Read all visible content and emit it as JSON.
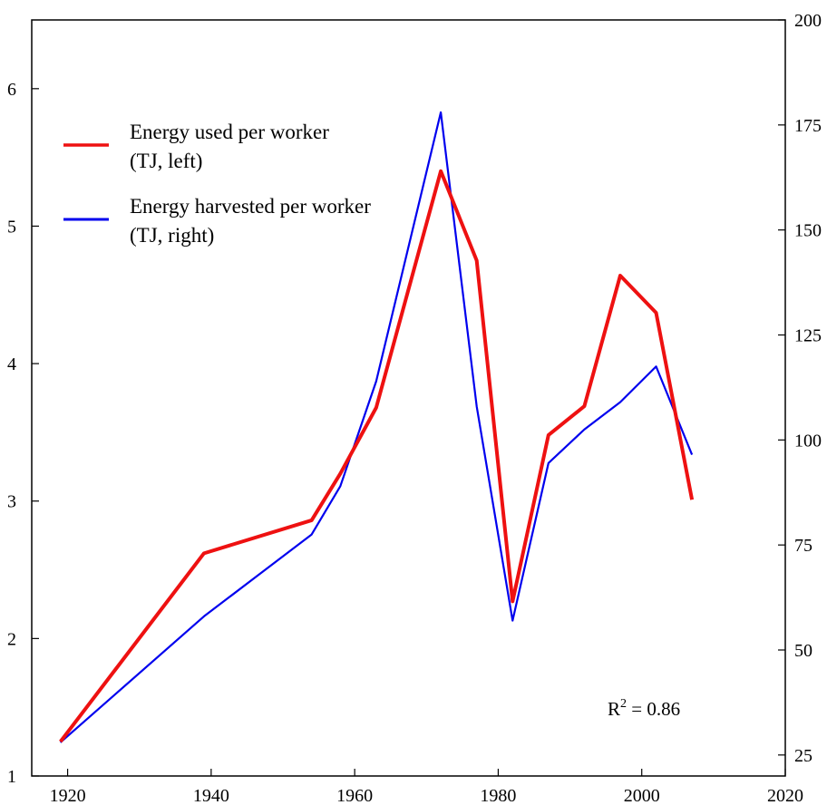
{
  "chart_data": {
    "type": "line",
    "title": "",
    "xlabel": "",
    "ylabel_left": "",
    "ylabel_right": "",
    "grid": false,
    "legend_position": "top-left",
    "xlim": [
      1915,
      2020
    ],
    "ylim_left": [
      1,
      6.5
    ],
    "ylim_right": [
      20,
      200
    ],
    "x_ticks": [
      1920,
      1940,
      1960,
      1980,
      2000,
      2020
    ],
    "x_tick_labels": [
      "1920",
      "1940",
      "1960",
      "1980",
      "2000",
      "2020"
    ],
    "y_left_ticks": [
      1,
      2,
      3,
      4,
      5,
      6
    ],
    "y_left_tick_labels": [
      "1",
      "2",
      "3",
      "4",
      "5",
      "6"
    ],
    "y_right_ticks": [
      25,
      50,
      75,
      100,
      125,
      150,
      175,
      200
    ],
    "y_right_tick_labels": [
      "25",
      "50",
      "75",
      "100",
      "125",
      "150",
      "175",
      "200"
    ],
    "series": [
      {
        "name": "Energy used per worker (TJ, left)",
        "legend_lines": [
          "Energy used per worker",
          "(TJ, left)"
        ],
        "axis": "left",
        "color": "#ee1111",
        "x": [
          1919,
          1939,
          1954,
          1958,
          1963,
          1972,
          1977,
          1982,
          1987,
          1992,
          1997,
          2002,
          2007
        ],
        "y": [
          1.25,
          2.62,
          2.86,
          3.2,
          3.68,
          5.4,
          4.75,
          2.27,
          3.48,
          3.69,
          4.64,
          4.37,
          3.01
        ]
      },
      {
        "name": "Energy harvested per worker (TJ, right)",
        "legend_lines": [
          "Energy harvested per worker",
          "(TJ, right)"
        ],
        "axis": "right",
        "color": "#0000ee",
        "x": [
          1919,
          1939,
          1954,
          1958,
          1963,
          1972,
          1977,
          1982,
          1987,
          1992,
          1997,
          2002,
          2007
        ],
        "y": [
          28,
          58,
          77.5,
          89,
          114,
          178,
          108,
          57,
          94.5,
          102.5,
          109,
          117.5,
          96.5
        ]
      }
    ],
    "annotations": [
      {
        "text": "R",
        "superscript": "2",
        "suffix": " = 0.86"
      }
    ]
  }
}
